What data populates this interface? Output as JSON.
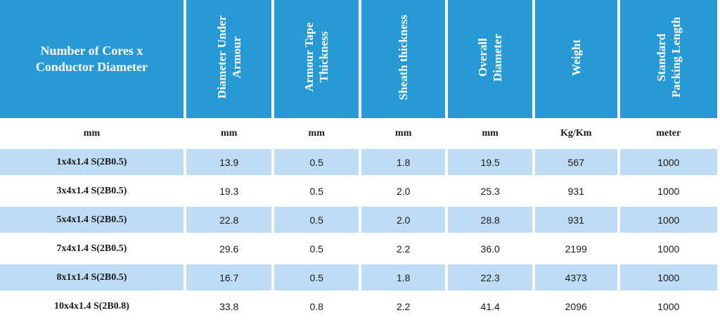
{
  "colors": {
    "header_bg": "#2799d5",
    "header_text": "#ffffff",
    "row_shade": "#bedcf3"
  },
  "table": {
    "headers": [
      "Number of Cores x\nConductor Diameter",
      "Diameter Under\nArmour",
      "Armour Tape\nThickness",
      "Sheath thickness",
      "Overall\nDiameter",
      "Weight",
      "Standard\nPacking Length"
    ],
    "units": [
      "mm",
      "mm",
      "mm",
      "mm",
      "mm",
      "Kg/Km",
      "meter"
    ],
    "rows": [
      [
        "1x4x1.4 S(2B0.5)",
        "13.9",
        "0.5",
        "1.8",
        "19.5",
        "567",
        "1000"
      ],
      [
        "3x4x1.4 S(2B0.5)",
        "19.3",
        "0.5",
        "2.0",
        "25.3",
        "931",
        "1000"
      ],
      [
        "5x4x1.4 S(2B0.5)",
        "22.8",
        "0.5",
        "2.0",
        "28.8",
        "931",
        "1000"
      ],
      [
        "7x4x1.4 S(2B0.5)",
        "29.6",
        "0.5",
        "2.2",
        "36.0",
        "2199",
        "1000"
      ],
      [
        "8x1x1.4 S(2B0.5)",
        "16.7",
        "0.5",
        "1.8",
        "22.3",
        "4373",
        "1000"
      ],
      [
        "10x4x1.4 S(2B0.8)",
        "33.8",
        "0.8",
        "2.2",
        "41.4",
        "2096",
        "1000"
      ]
    ]
  }
}
